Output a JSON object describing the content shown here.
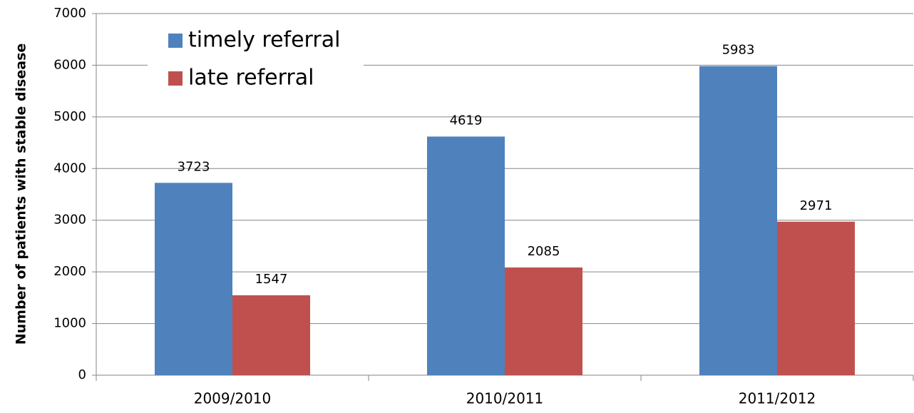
{
  "chart_data": {
    "type": "bar",
    "y_label": "Number of patients with stable disease",
    "categories": [
      "2009/2010",
      "2010/2011",
      "2011/2012"
    ],
    "series": [
      {
        "name": "timely referral",
        "color": "#4f81bd",
        "values": [
          3723,
          4619,
          5983
        ]
      },
      {
        "name": "late referral",
        "color": "#c0504d",
        "values": [
          1547,
          2085,
          2971
        ]
      }
    ],
    "ylim": [
      0,
      7000
    ],
    "yticks": [
      0,
      1000,
      2000,
      3000,
      4000,
      5000,
      6000,
      7000
    ],
    "grid": true,
    "legend": "top-left"
  }
}
